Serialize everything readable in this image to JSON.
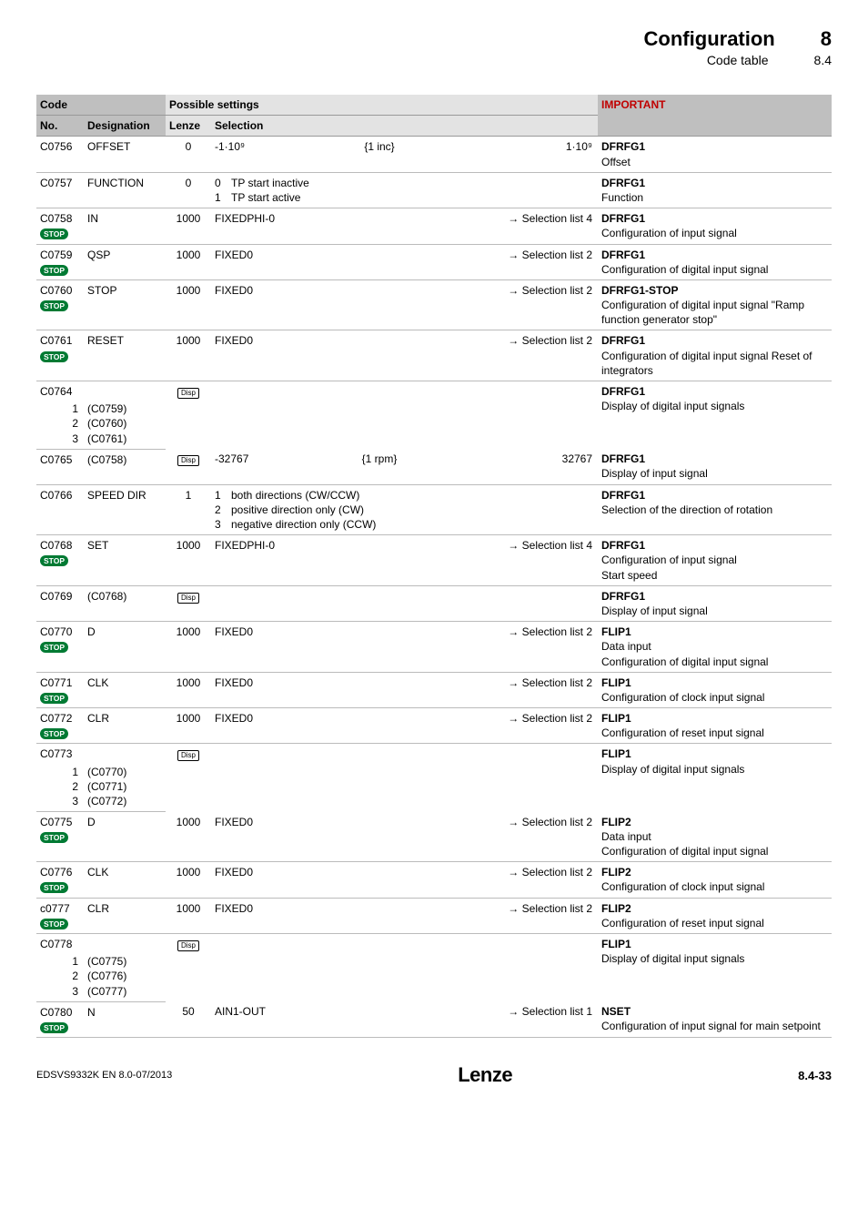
{
  "header": {
    "title": "Configuration",
    "subtitle": "Code table",
    "chapter": "8",
    "section": "8.4"
  },
  "thead": {
    "code": "Code",
    "no": "No.",
    "des": "Designation",
    "ps": "Possible settings",
    "lz": "Lenze",
    "sel": "Selection",
    "imp": "IMPORTANT"
  },
  "badges": {
    "stop": "STOP",
    "disp": "Disp"
  },
  "rows": [
    {
      "no": "C0756",
      "stop": false,
      "des": "OFFSET",
      "lz": "0",
      "lzDisp": false,
      "sel1": "-1·10⁹",
      "sel2": "{1 inc}",
      "sel3": "1·10⁹",
      "impBold": "DFRFG1",
      "imp": "Offset"
    },
    {
      "no": "C0757",
      "stop": false,
      "des": "FUNCTION",
      "lz": "0",
      "lzDisp": false,
      "selMulti": [
        [
          "0",
          "TP start inactive"
        ],
        [
          "1",
          "TP start active"
        ]
      ],
      "impBold": "DFRFG1",
      "imp": "Function"
    },
    {
      "no": "C0758",
      "stop": true,
      "des": "IN",
      "lz": "1000",
      "lzDisp": false,
      "sel1": "FIXEDPHI-0",
      "sel3arrow": "Selection list 4",
      "impBold": "DFRFG1",
      "imp": "Configuration of input signal"
    },
    {
      "no": "C0759",
      "stop": true,
      "des": "QSP",
      "lz": "1000",
      "lzDisp": false,
      "sel1": "FIXED0",
      "sel3arrow": "Selection list 2",
      "impBold": "DFRFG1",
      "imp": "Configuration of digital input signal"
    },
    {
      "no": "C0760",
      "stop": true,
      "des": "STOP",
      "lz": "1000",
      "lzDisp": false,
      "sel1": "FIXED0",
      "sel3arrow": "Selection list 2",
      "impBold": "DFRFG1-STOP",
      "imp": "Configuration of digital input signal \"Ramp function generator stop\""
    },
    {
      "no": "C0761",
      "stop": true,
      "des": "RESET",
      "lz": "1000",
      "lzDisp": false,
      "sel1": "FIXED0",
      "sel3arrow": "Selection list 2",
      "impBold": "DFRFG1",
      "imp": "Configuration of digital input signal Reset of integrators"
    },
    {
      "no": "C0764",
      "stop": false,
      "des": "",
      "lz": "",
      "lzDisp": true,
      "sel1": "",
      "impBold": "DFRFG1",
      "imp": "Display of digital input signals",
      "subs": [
        [
          "1",
          "(C0759)"
        ],
        [
          "2",
          "(C0760)"
        ],
        [
          "3",
          "(C0761)"
        ]
      ]
    },
    {
      "no": "C0765",
      "stop": false,
      "des": "(C0758)",
      "lz": "",
      "lzDisp": true,
      "sel1": "-32767",
      "sel2": "{1 rpm}",
      "sel3": "32767",
      "impBold": "DFRFG1",
      "imp": "Display of input signal"
    },
    {
      "no": "C0766",
      "stop": false,
      "des": "SPEED DIR",
      "lz": "1",
      "lzDisp": false,
      "selMulti": [
        [
          "1",
          "both directions (CW/CCW)"
        ],
        [
          "2",
          "positive direction only (CW)"
        ],
        [
          "3",
          "negative direction only (CCW)"
        ]
      ],
      "impBold": "DFRFG1",
      "imp": "Selection of the direction of rotation"
    },
    {
      "no": "C0768",
      "stop": true,
      "des": "SET",
      "lz": "1000",
      "lzDisp": false,
      "sel1": "FIXEDPHI-0",
      "sel3arrow": "Selection list 4",
      "impBold": "DFRFG1",
      "imp": "Configuration of input signal\nStart speed"
    },
    {
      "no": "C0769",
      "stop": false,
      "des": "(C0768)",
      "lz": "",
      "lzDisp": true,
      "sel1": "",
      "impBold": "DFRFG1",
      "imp": "Display of input signal"
    },
    {
      "no": "C0770",
      "stop": true,
      "des": "D",
      "lz": "1000",
      "lzDisp": false,
      "sel1": "FIXED0",
      "sel3arrow": "Selection list 2",
      "impBold": "FLIP1",
      "imp": "Data input\nConfiguration of digital input signal"
    },
    {
      "no": "C0771",
      "stop": true,
      "des": "CLK",
      "lz": "1000",
      "lzDisp": false,
      "sel1": "FIXED0",
      "sel3arrow": "Selection list 2",
      "impBold": "FLIP1",
      "imp": "Configuration of clock input signal"
    },
    {
      "no": "C0772",
      "stop": true,
      "des": "CLR",
      "lz": "1000",
      "lzDisp": false,
      "sel1": "FIXED0",
      "sel3arrow": "Selection list 2",
      "impBold": "FLIP1",
      "imp": "Configuration of reset input signal"
    },
    {
      "no": "C0773",
      "stop": false,
      "des": "",
      "lz": "",
      "lzDisp": true,
      "sel1": "",
      "impBold": "FLIP1",
      "imp": "Display of digital input signals",
      "subs": [
        [
          "1",
          "(C0770)"
        ],
        [
          "2",
          "(C0771)"
        ],
        [
          "3",
          "(C0772)"
        ]
      ]
    },
    {
      "no": "C0775",
      "stop": true,
      "des": "D",
      "lz": "1000",
      "lzDisp": false,
      "sel1": "FIXED0",
      "sel3arrow": "Selection list 2",
      "impBold": "FLIP2",
      "imp": "Data input\nConfiguration of digital input signal"
    },
    {
      "no": "C0776",
      "stop": true,
      "des": "CLK",
      "lz": "1000",
      "lzDisp": false,
      "sel1": "FIXED0",
      "sel3arrow": "Selection list 2",
      "impBold": "FLIP2",
      "imp": "Configuration of clock input signal"
    },
    {
      "no": "c0777",
      "stop": true,
      "des": "CLR",
      "lz": "1000",
      "lzDisp": false,
      "sel1": "FIXED0",
      "sel3arrow": "Selection list 2",
      "impBold": "FLIP2",
      "imp": "Configuration of reset input signal"
    },
    {
      "no": "C0778",
      "stop": false,
      "des": "",
      "lz": "",
      "lzDisp": true,
      "sel1": "",
      "impBold": "FLIP1",
      "imp": "Display of digital input signals",
      "subs": [
        [
          "1",
          "(C0775)"
        ],
        [
          "2",
          "(C0776)"
        ],
        [
          "3",
          "(C0777)"
        ]
      ]
    },
    {
      "no": "C0780",
      "stop": true,
      "des": "N",
      "lz": "50",
      "lzDisp": false,
      "sel1": "AIN1-OUT",
      "sel3arrow": "Selection list 1",
      "impBold": "NSET",
      "imp": "Configuration of input signal for main setpoint"
    }
  ],
  "footer": {
    "left": "EDSVS9332K EN 8.0-07/2013",
    "logo": "Lenze",
    "page": "8.4-33"
  }
}
